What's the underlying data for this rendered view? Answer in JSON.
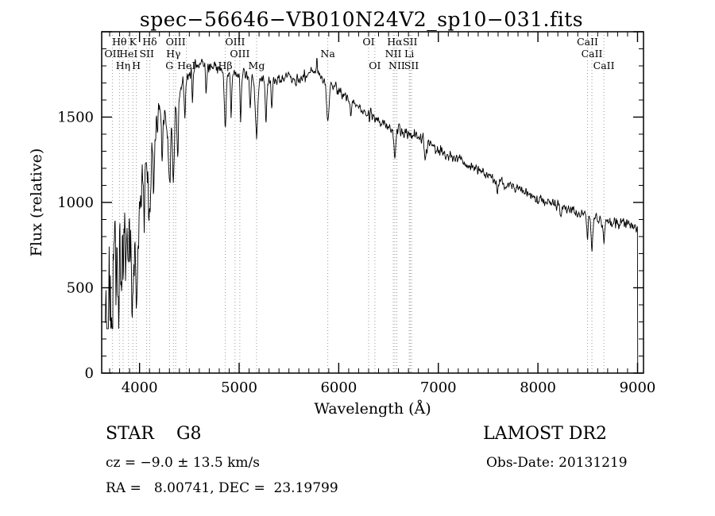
{
  "title": "spec−56646−VB010N24V2_sp10−031.fits",
  "annotations": {
    "class_label": "STAR    G8",
    "survey": "LAMOST DR2",
    "cz": "cz = −9.0 ± 13.5 km/s",
    "obs_date": "Obs-Date: 20131219",
    "radec": "RA =   8.00741, DEC =  23.19799"
  },
  "chart_data": {
    "type": "line",
    "title": "spec−56646−VB010N24V2_sp10−031.fits",
    "xlabel": "Wavelength (Å)",
    "ylabel": "Flux (relative)",
    "xlim": [
      3620,
      9060
    ],
    "ylim": [
      0,
      2000
    ],
    "x_ticks": [
      4000,
      5000,
      6000,
      7000,
      8000,
      9000
    ],
    "y_ticks": [
      0,
      500,
      1000,
      1500
    ],
    "x_minor_step": 100,
    "y_minor_step": 100,
    "grid": false,
    "legend": "none",
    "line_color": "#000000",
    "marker_line_color": "#999999",
    "frame_color": "#000000",
    "envelope": [
      [
        3655,
        480
      ],
      [
        3700,
        520
      ],
      [
        3720,
        430
      ],
      [
        3750,
        640
      ],
      [
        3780,
        560
      ],
      [
        3820,
        760
      ],
      [
        3860,
        850
      ],
      [
        3900,
        800
      ],
      [
        3940,
        700
      ],
      [
        3980,
        850
      ],
      [
        4000,
        1000
      ],
      [
        4040,
        1150
      ],
      [
        4080,
        1250
      ],
      [
        4120,
        1280
      ],
      [
        4160,
        1400
      ],
      [
        4200,
        1500
      ],
      [
        4250,
        1520
      ],
      [
        4300,
        1480
      ],
      [
        4350,
        1560
      ],
      [
        4400,
        1650
      ],
      [
        4450,
        1700
      ],
      [
        4500,
        1750
      ],
      [
        4550,
        1790
      ],
      [
        4600,
        1820
      ],
      [
        4650,
        1810
      ],
      [
        4700,
        1800
      ],
      [
        4750,
        1790
      ],
      [
        4800,
        1780
      ],
      [
        4850,
        1770
      ],
      [
        4900,
        1760
      ],
      [
        4950,
        1750
      ],
      [
        5000,
        1750
      ],
      [
        5050,
        1745
      ],
      [
        5100,
        1740
      ],
      [
        5150,
        1730
      ],
      [
        5200,
        1720
      ],
      [
        5250,
        1715
      ],
      [
        5300,
        1710
      ],
      [
        5350,
        1715
      ],
      [
        5400,
        1720
      ],
      [
        5450,
        1730
      ],
      [
        5500,
        1740
      ],
      [
        5550,
        1735
      ],
      [
        5600,
        1730
      ],
      [
        5650,
        1745
      ],
      [
        5700,
        1760
      ],
      [
        5750,
        1770
      ],
      [
        5800,
        1745
      ],
      [
        5850,
        1720
      ],
      [
        5900,
        1700
      ],
      [
        5950,
        1680
      ],
      [
        6000,
        1660
      ],
      [
        6050,
        1635
      ],
      [
        6100,
        1610
      ],
      [
        6150,
        1585
      ],
      [
        6200,
        1560
      ],
      [
        6250,
        1540
      ],
      [
        6300,
        1520
      ],
      [
        6350,
        1500
      ],
      [
        6400,
        1480
      ],
      [
        6450,
        1460
      ],
      [
        6500,
        1440
      ],
      [
        6550,
        1428
      ],
      [
        6600,
        1420
      ],
      [
        6650,
        1410
      ],
      [
        6700,
        1400
      ],
      [
        6750,
        1390
      ],
      [
        6800,
        1380
      ],
      [
        6850,
        1365
      ],
      [
        6900,
        1345
      ],
      [
        6950,
        1328
      ],
      [
        7000,
        1310
      ],
      [
        7050,
        1295
      ],
      [
        7100,
        1280
      ],
      [
        7150,
        1265
      ],
      [
        7200,
        1250
      ],
      [
        7250,
        1235
      ],
      [
        7300,
        1220
      ],
      [
        7350,
        1205
      ],
      [
        7400,
        1190
      ],
      [
        7450,
        1175
      ],
      [
        7500,
        1160
      ],
      [
        7550,
        1145
      ],
      [
        7600,
        1130
      ],
      [
        7650,
        1115
      ],
      [
        7700,
        1100
      ],
      [
        7750,
        1090
      ],
      [
        7800,
        1080
      ],
      [
        7850,
        1065
      ],
      [
        7900,
        1050
      ],
      [
        7950,
        1035
      ],
      [
        8000,
        1020
      ],
      [
        8050,
        1010
      ],
      [
        8100,
        1000
      ],
      [
        8150,
        990
      ],
      [
        8200,
        980
      ],
      [
        8250,
        970
      ],
      [
        8300,
        960
      ],
      [
        8350,
        950
      ],
      [
        8400,
        940
      ],
      [
        8450,
        930
      ],
      [
        8500,
        920
      ],
      [
        8550,
        912
      ],
      [
        8600,
        905
      ],
      [
        8650,
        897
      ],
      [
        8700,
        890
      ],
      [
        8750,
        882
      ],
      [
        8800,
        875
      ],
      [
        8850,
        870
      ],
      [
        8900,
        865
      ],
      [
        8950,
        858
      ],
      [
        9000,
        852
      ]
    ],
    "absorption_lines": [
      [
        3798,
        0.28,
        7
      ],
      [
        3835,
        0.28,
        7
      ],
      [
        3889,
        0.25,
        7
      ],
      [
        3933,
        0.42,
        9
      ],
      [
        3968,
        0.38,
        9
      ],
      [
        4045,
        0.18,
        6
      ],
      [
        4101,
        0.32,
        9
      ],
      [
        4144,
        0.15,
        6
      ],
      [
        4226,
        0.2,
        6
      ],
      [
        4300,
        0.25,
        12
      ],
      [
        4340,
        0.28,
        9
      ],
      [
        4383,
        0.2,
        7
      ],
      [
        4455,
        0.12,
        6
      ],
      [
        4531,
        0.1,
        6
      ],
      [
        4668,
        0.1,
        6
      ],
      [
        4861,
        0.18,
        9
      ],
      [
        4920,
        0.14,
        6
      ],
      [
        5015,
        0.15,
        6
      ],
      [
        5110,
        0.1,
        6
      ],
      [
        5175,
        0.2,
        12
      ],
      [
        5270,
        0.15,
        7
      ],
      [
        5328,
        0.1,
        6
      ],
      [
        5780,
        -0.05,
        4
      ],
      [
        5890,
        0.14,
        11
      ],
      [
        6122,
        0.06,
        6
      ],
      [
        6563,
        0.1,
        9
      ],
      [
        6870,
        0.06,
        10
      ],
      [
        7594,
        0.06,
        12
      ],
      [
        8230,
        0.04,
        10
      ],
      [
        8498,
        0.12,
        7
      ],
      [
        8542,
        0.2,
        8
      ],
      [
        8662,
        0.16,
        8
      ]
    ],
    "noise": {
      "base_sigma": 22,
      "blue_sigma": 360,
      "blue_ref": 3650,
      "blue_scale": 330,
      "seed": 42
    },
    "sample_start": 3655,
    "sample_end": 9000,
    "sample_step": 4,
    "cutoff_drop_to": 5,
    "line_markers": [
      3727,
      3798,
      3835,
      3889,
      3933,
      3968,
      4072,
      4102,
      4300,
      4340,
      4363,
      4471,
      4861,
      4959,
      5007,
      5175,
      5890,
      6300,
      6363,
      6548,
      6563,
      6583,
      6708,
      6717,
      6731,
      8498,
      8542,
      8662
    ],
    "marker_labels": [
      {
        "text": "Hθ",
        "wavelength": 3798,
        "row": 0
      },
      {
        "text": "K",
        "wavelength": 3933,
        "row": 0
      },
      {
        "text": "Hδ",
        "wavelength": 4102,
        "row": 0
      },
      {
        "text": "OIII",
        "wavelength": 4363,
        "row": 0
      },
      {
        "text": "OIII",
        "wavelength": 4959,
        "row": 0
      },
      {
        "text": "OI",
        "wavelength": 6300,
        "row": 0
      },
      {
        "text": "Hα",
        "wavelength": 6563,
        "row": 0
      },
      {
        "text": "SII",
        "wavelength": 6717,
        "row": 0
      },
      {
        "text": "CaII",
        "wavelength": 8498,
        "row": 0
      },
      {
        "text": "OII",
        "wavelength": 3727,
        "row": 1
      },
      {
        "text": "HeI",
        "wavelength": 3889,
        "row": 1
      },
      {
        "text": "SII",
        "wavelength": 4072,
        "row": 1
      },
      {
        "text": "Hγ",
        "wavelength": 4340,
        "row": 1
      },
      {
        "text": "OIII",
        "wavelength": 5007,
        "row": 1
      },
      {
        "text": "Na",
        "wavelength": 5890,
        "row": 1
      },
      {
        "text": "NII",
        "wavelength": 6548,
        "row": 1
      },
      {
        "text": "Li",
        "wavelength": 6708,
        "row": 1
      },
      {
        "text": "CaII",
        "wavelength": 8542,
        "row": 1
      },
      {
        "text": "Hη",
        "wavelength": 3835,
        "row": 2
      },
      {
        "text": "H",
        "wavelength": 3968,
        "row": 2
      },
      {
        "text": "G",
        "wavelength": 4300,
        "row": 2
      },
      {
        "text": "HeI",
        "wavelength": 4471,
        "row": 2
      },
      {
        "text": "Hβ",
        "wavelength": 4861,
        "row": 2
      },
      {
        "text": "Mg",
        "wavelength": 5175,
        "row": 2
      },
      {
        "text": "OI",
        "wavelength": 6363,
        "row": 2
      },
      {
        "text": "NII",
        "wavelength": 6583,
        "row": 2
      },
      {
        "text": "SII",
        "wavelength": 6731,
        "row": 2
      },
      {
        "text": "CaII",
        "wavelength": 8662,
        "row": 2
      }
    ]
  }
}
